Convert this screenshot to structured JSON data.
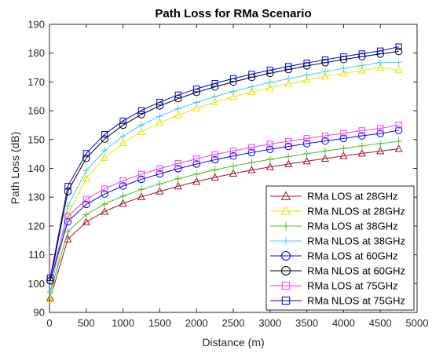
{
  "chart_data": {
    "type": "line",
    "title": "Path Loss for RMa Scenario",
    "xlabel": "Distance (m)",
    "ylabel": "Path Loss (dB)",
    "xlim": [
      0,
      5000
    ],
    "ylim": [
      90,
      190
    ],
    "xticks": [
      0,
      500,
      1000,
      1500,
      2000,
      2500,
      3000,
      3500,
      4000,
      4500,
      5000
    ],
    "yticks": [
      90,
      100,
      110,
      120,
      130,
      140,
      150,
      160,
      170,
      180,
      190
    ],
    "grid": false,
    "legend_position": "lower-right",
    "x": [
      10,
      250,
      500,
      750,
      1000,
      1250,
      1500,
      1750,
      2000,
      2250,
      2500,
      2750,
      3000,
      3250,
      3500,
      3750,
      4000,
      4250,
      4500,
      4750
    ],
    "series": [
      {
        "name": "RMa LOS at 28GHz",
        "color": "#A2142F",
        "marker": "triangle",
        "values": [
          95,
          115.4,
          121.4,
          125.0,
          127.8,
          130.1,
          132.0,
          133.8,
          135.4,
          136.9,
          138.2,
          139.4,
          140.5,
          141.5,
          142.5,
          143.4,
          144.3,
          145.2,
          146.0,
          146.8
        ]
      },
      {
        "name": "RMa NLOS at 28GHz",
        "color": "#E6E600",
        "marker": "triangle",
        "values": [
          94.5,
          124,
          136.5,
          143.7,
          148.8,
          152.7,
          155.9,
          158.6,
          160.9,
          163.0,
          164.8,
          166.5,
          168.0,
          169.4,
          170.7,
          171.9,
          173.0,
          174.0,
          175.0,
          174.2
        ]
      },
      {
        "name": "RMa LOS at 38GHz",
        "color": "#4DBE1E",
        "marker": "plus",
        "values": [
          97,
          118.0,
          124.0,
          127.6,
          130.4,
          132.7,
          134.6,
          136.4,
          138.0,
          139.5,
          140.8,
          142.0,
          143.1,
          144.1,
          145.1,
          146.0,
          146.9,
          147.8,
          148.6,
          149.4
        ]
      },
      {
        "name": "RMa NLOS at 38GHz",
        "color": "#4DC8F0",
        "marker": "plus",
        "values": [
          97,
          127,
          139.2,
          146.2,
          151.2,
          155.0,
          158.1,
          160.7,
          162.9,
          164.9,
          166.7,
          168.3,
          169.8,
          171.1,
          172.4,
          173.6,
          174.7,
          175.7,
          176.7,
          176.8
        ]
      },
      {
        "name": "RMa LOS at 60GHz",
        "color": "#0000FF",
        "marker": "circle",
        "values": [
          101,
          121.5,
          127.5,
          131.1,
          133.9,
          136.2,
          138.1,
          139.9,
          141.5,
          143.0,
          144.3,
          145.5,
          146.6,
          147.6,
          148.6,
          149.5,
          150.4,
          151.3,
          152.1,
          153.2
        ]
      },
      {
        "name": "RMa NLOS at 60GHz",
        "color": "#000000",
        "marker": "circle",
        "values": [
          101,
          132,
          143.5,
          150.2,
          155.0,
          158.7,
          161.7,
          164.2,
          166.4,
          168.3,
          170.0,
          171.6,
          173.0,
          174.3,
          175.6,
          176.7,
          177.8,
          178.8,
          179.7,
          180.6
        ]
      },
      {
        "name": "RMa LOS at 75GHz",
        "color": "#E640E6",
        "marker": "square",
        "values": [
          102,
          123.3,
          129.3,
          132.9,
          135.7,
          138.0,
          139.9,
          141.7,
          143.3,
          144.8,
          146.1,
          147.3,
          148.4,
          149.4,
          150.4,
          151.3,
          152.2,
          153.1,
          153.9,
          155.0
        ]
      },
      {
        "name": "RMa NLOS at 75GHz",
        "color": "#0000CC",
        "marker": "square",
        "values": [
          102,
          133.8,
          145.2,
          151.8,
          156.5,
          160.1,
          163.0,
          165.5,
          167.6,
          169.5,
          171.2,
          172.7,
          174.1,
          175.4,
          176.6,
          177.7,
          178.8,
          179.8,
          180.8,
          182.2
        ]
      }
    ]
  }
}
